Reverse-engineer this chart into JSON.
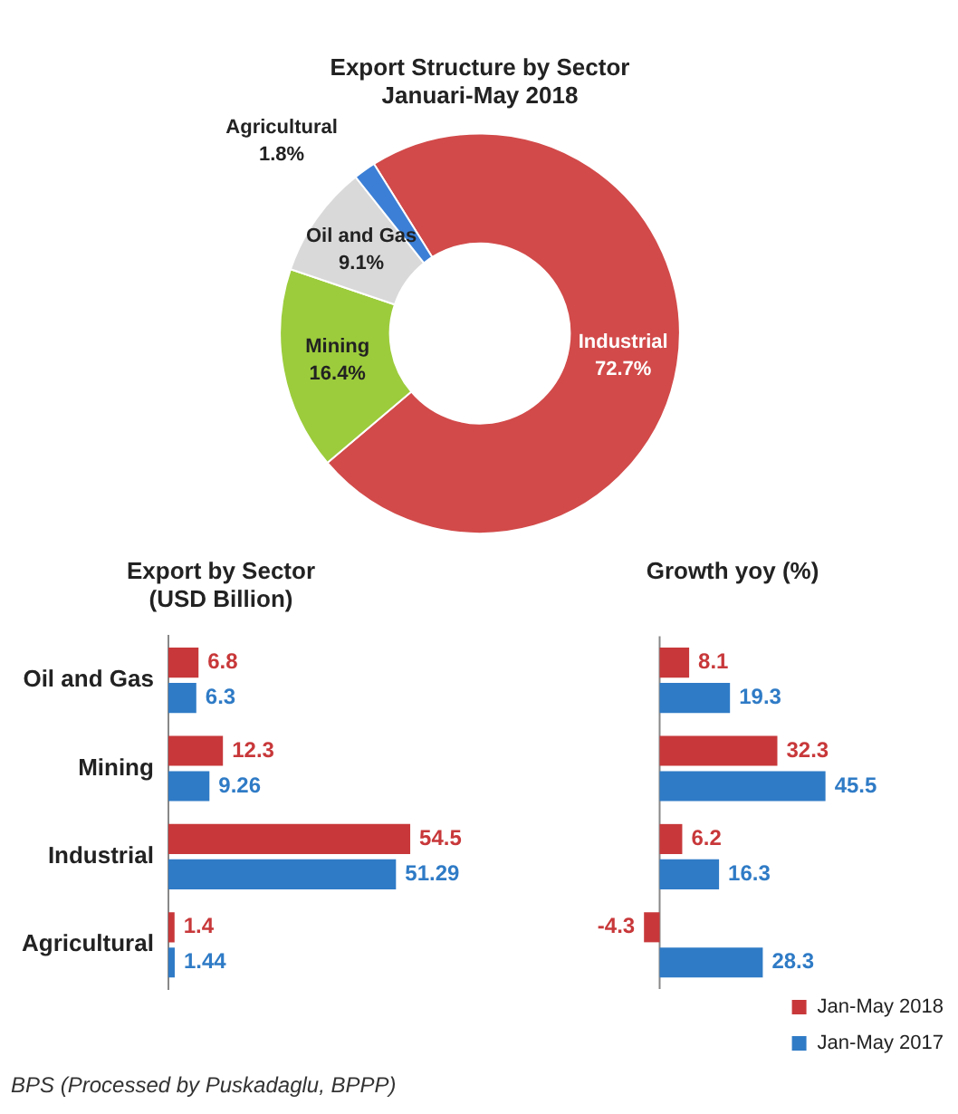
{
  "chart_data": [
    {
      "type": "donut",
      "title": "Export Structure by Sector",
      "subtitle": "Januari-May 2018",
      "categories": [
        "Industrial",
        "Mining",
        "Oil and Gas",
        "Agricultural"
      ],
      "values": [
        72.7,
        16.4,
        9.1,
        1.8
      ],
      "colors": [
        "#d24a4a",
        "#9ccc3c",
        "#d9d9d9",
        "#3c7fd6"
      ],
      "value_labels": [
        "72.7%",
        "16.4%",
        "9.1%",
        "1.8%"
      ],
      "legend": false
    },
    {
      "type": "bar",
      "orientation": "horizontal",
      "title": "Export by Sector",
      "subtitle": "(USD Billion)",
      "categories": [
        "Oil and Gas",
        "Mining",
        "Industrial",
        "Agricultural"
      ],
      "series": [
        {
          "color": "#c8383a",
          "values": [
            6.8,
            12.3,
            54.5,
            1.4
          ]
        },
        {
          "color": "#2f7bc6",
          "values": [
            6.3,
            9.26,
            51.29,
            1.44
          ]
        }
      ],
      "tick_labels": "y",
      "data_labels": true,
      "grid": false,
      "legend": false,
      "annotations": [
        "BPS (Processed by Puskadaglu, BPPP)"
      ]
    },
    {
      "type": "bar",
      "orientation": "horizontal",
      "title": "Growth yoy (%)",
      "categories": [
        null,
        null,
        null,
        null
      ],
      "series": [
        {
          "name": "Jan-May 2018",
          "color": "#c8383a",
          "values": [
            8.1,
            32.3,
            6.2,
            -4.3
          ],
          "value_labels": [
            "8.1",
            "32.3",
            "6.2",
            "-4.3"
          ]
        },
        {
          "name": "Jan-May 2017",
          "color": "#2f7bc6",
          "values": [
            19.3,
            45.5,
            16.3,
            28.3
          ],
          "value_labels": [
            "19.3",
            "45.5",
            "16.3",
            "28.3"
          ]
        }
      ],
      "tick_labels": false,
      "grid": false,
      "legend": "bottom right"
    }
  ]
}
